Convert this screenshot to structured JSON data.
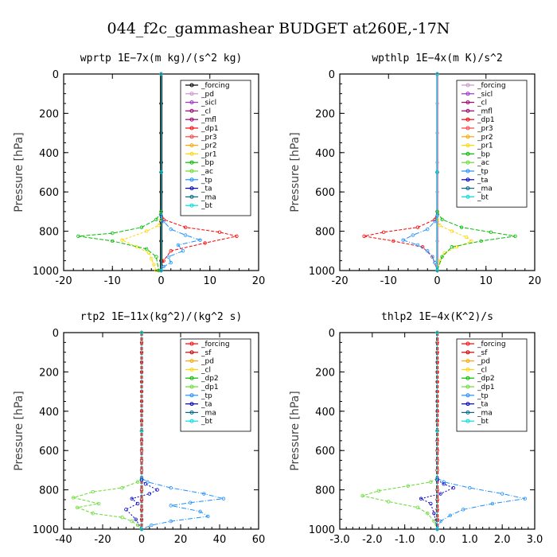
{
  "figure_title": "044_f2c_gammashear  BUDGET at260E,-17N",
  "chart_data": [
    {
      "type": "line",
      "title": "wprtp  1E−7x(m kg)/(s^2 kg)",
      "ylabel": "Pressure [hPa]",
      "xlim": [
        -20,
        20
      ],
      "ylim": [
        1000,
        0
      ],
      "xticks": [
        "-20",
        "-10",
        "0",
        "10",
        "20"
      ],
      "yticks": [
        "0",
        "200",
        "400",
        "600",
        "800",
        "1000"
      ],
      "legend": "top-right",
      "series": [
        {
          "name": "_forcing",
          "color": "#000000",
          "marker": "o",
          "x": [
            0,
            0,
            0,
            0,
            0,
            0,
            0,
            0,
            0
          ],
          "y": [
            0,
            150,
            300,
            450,
            600,
            750,
            850,
            950,
            1000
          ]
        },
        {
          "name": "_pd",
          "color": "#c896c8",
          "marker": "o",
          "x": [
            0,
            0,
            0
          ],
          "y": [
            0,
            500,
            1000
          ]
        },
        {
          "name": "_sicl",
          "color": "#9932cc",
          "marker": "o",
          "x": [
            0,
            0,
            0
          ],
          "y": [
            0,
            500,
            1000
          ]
        },
        {
          "name": "_cl",
          "color": "#a0006e",
          "marker": "+",
          "x": [
            0,
            0,
            0
          ],
          "y": [
            0,
            500,
            1000
          ]
        },
        {
          "name": "_mfl",
          "color": "#a0006e",
          "marker": "+",
          "x": [
            0,
            0,
            0
          ],
          "y": [
            0,
            500,
            1000
          ]
        },
        {
          "name": "_dp1",
          "color": "#ff0000",
          "marker": "o",
          "x": [
            0,
            0.5,
            5,
            12,
            15.5,
            9,
            2,
            0.5,
            0
          ],
          "y": [
            700,
            740,
            780,
            805,
            825,
            860,
            900,
            950,
            1000
          ]
        },
        {
          "name": "_pr3",
          "color": "#ff4040",
          "marker": "+",
          "x": [
            0,
            0,
            0
          ],
          "y": [
            0,
            500,
            1000
          ]
        },
        {
          "name": "_pr2",
          "color": "#ffa500",
          "marker": "+",
          "x": [
            0,
            0,
            0
          ],
          "y": [
            0,
            500,
            1000
          ]
        },
        {
          "name": "_pr1",
          "color": "#ffd700",
          "marker": "+",
          "x": [
            0,
            -0.5,
            -3,
            -8,
            -5,
            -2.5,
            -2,
            -1.5,
            -1
          ],
          "y": [
            740,
            770,
            800,
            845,
            880,
            910,
            940,
            970,
            1000
          ]
        },
        {
          "name": "_bp",
          "color": "#00bb00",
          "marker": "x",
          "x": [
            0,
            -1,
            -4,
            -10,
            -17,
            -10,
            -3,
            -1,
            -0.5
          ],
          "y": [
            700,
            740,
            780,
            810,
            825,
            850,
            890,
            930,
            1000
          ]
        },
        {
          "name": "_ac",
          "color": "#66dd33",
          "marker": "o",
          "x": [
            0,
            0,
            0
          ],
          "y": [
            0,
            500,
            1000
          ]
        },
        {
          "name": "_tp",
          "color": "#1e90ff",
          "marker": "x",
          "x": [
            0,
            0.5,
            2,
            5,
            8,
            3.5,
            4.5,
            1.5,
            2,
            0.5,
            0
          ],
          "y": [
            720,
            750,
            790,
            820,
            845,
            870,
            900,
            930,
            960,
            980,
            1000
          ]
        },
        {
          "name": "_ta",
          "color": "#0000cd",
          "marker": "+",
          "x": [
            0,
            0,
            0
          ],
          "y": [
            0,
            500,
            1000
          ]
        },
        {
          "name": "_ma",
          "color": "#00688b",
          "marker": "-",
          "x": [
            0,
            0,
            0
          ],
          "y": [
            0,
            500,
            1000
          ]
        },
        {
          "name": "_bt",
          "color": "#00dddd",
          "marker": "d",
          "x": [
            0,
            0,
            0
          ],
          "y": [
            0,
            500,
            1000
          ]
        }
      ]
    },
    {
      "type": "line",
      "title": "wpthlp  1E−4x(m K)/s^2",
      "ylabel": "Pressure [hPa]",
      "xlim": [
        -20,
        20
      ],
      "ylim": [
        1000,
        0
      ],
      "xticks": [
        "-20",
        "-10",
        "0",
        "10",
        "20"
      ],
      "yticks": [
        "0",
        "200",
        "400",
        "600",
        "800",
        "1000"
      ],
      "legend": "top-right",
      "series": [
        {
          "name": "_forcing",
          "color": "#c896c8",
          "marker": "o",
          "x": [
            0,
            0,
            0,
            0,
            0,
            0,
            0,
            0,
            0
          ],
          "y": [
            0,
            150,
            300,
            450,
            600,
            750,
            850,
            950,
            1000
          ]
        },
        {
          "name": "_sicl",
          "color": "#9932cc",
          "marker": "o",
          "x": [
            0,
            0,
            0
          ],
          "y": [
            0,
            500,
            1000
          ]
        },
        {
          "name": "_cl",
          "color": "#a0006e",
          "marker": "+",
          "x": [
            0,
            0,
            0
          ],
          "y": [
            0,
            500,
            1000
          ]
        },
        {
          "name": "_mfl",
          "color": "#a0006e",
          "marker": "+",
          "x": [
            0,
            0,
            0
          ],
          "y": [
            0,
            500,
            1000
          ]
        },
        {
          "name": "_dp1",
          "color": "#ff0000",
          "marker": "o",
          "x": [
            0,
            -0.5,
            -4,
            -11,
            -15,
            -9,
            -3,
            -1,
            0
          ],
          "y": [
            700,
            740,
            780,
            805,
            825,
            850,
            880,
            930,
            1000
          ]
        },
        {
          "name": "_pr3",
          "color": "#ff4040",
          "marker": "+",
          "x": [
            0,
            0,
            0
          ],
          "y": [
            0,
            500,
            1000
          ]
        },
        {
          "name": "_pr2",
          "color": "#ffa500",
          "marker": "+",
          "x": [
            0,
            0,
            0
          ],
          "y": [
            0,
            500,
            1000
          ]
        },
        {
          "name": "_pr1",
          "color": "#ffd700",
          "marker": "+",
          "x": [
            0,
            0.5,
            3,
            6,
            7,
            4,
            1.5,
            0.5,
            0
          ],
          "y": [
            740,
            770,
            800,
            830,
            850,
            880,
            910,
            950,
            1000
          ]
        },
        {
          "name": "_bp",
          "color": "#00bb00",
          "marker": "x",
          "x": [
            0,
            1,
            5,
            11,
            16,
            9,
            3,
            1,
            0
          ],
          "y": [
            700,
            740,
            780,
            805,
            825,
            850,
            880,
            930,
            1000
          ]
        },
        {
          "name": "_ac",
          "color": "#66dd33",
          "marker": "o",
          "x": [
            0,
            0,
            0
          ],
          "y": [
            0,
            500,
            1000
          ]
        },
        {
          "name": "_tp",
          "color": "#1e90ff",
          "marker": "x",
          "x": [
            0,
            -0.5,
            -2,
            -5,
            -7,
            -4,
            -2,
            -1,
            -0.5,
            0
          ],
          "y": [
            720,
            750,
            790,
            820,
            845,
            870,
            900,
            930,
            960,
            1000
          ]
        },
        {
          "name": "_ta",
          "color": "#0000cd",
          "marker": "+",
          "x": [
            0,
            0,
            0
          ],
          "y": [
            0,
            500,
            1000
          ]
        },
        {
          "name": "_ma",
          "color": "#00688b",
          "marker": "-",
          "x": [
            0,
            0,
            0
          ],
          "y": [
            0,
            500,
            1000
          ]
        },
        {
          "name": "_bt",
          "color": "#00dddd",
          "marker": "d",
          "x": [
            0,
            0,
            0
          ],
          "y": [
            0,
            500,
            1000
          ]
        }
      ]
    },
    {
      "type": "line",
      "title": "rtp2  1E−11x(kg^2)/(kg^2 s)",
      "ylabel": "Pressure [hPa]",
      "xlim": [
        -40,
        60
      ],
      "ylim": [
        1000,
        0
      ],
      "xticks": [
        "-40",
        "-20",
        "0",
        "20",
        "40",
        "60"
      ],
      "yticks": [
        "0",
        "200",
        "400",
        "600",
        "800",
        "1000"
      ],
      "legend": "top-right",
      "series": [
        {
          "name": "_forcing",
          "color": "#ff0000",
          "marker": "o",
          "x": [
            0,
            0,
            0,
            0,
            0,
            0,
            0,
            0,
            0,
            0,
            0,
            0,
            0,
            0,
            0,
            0,
            0,
            0,
            0,
            0,
            0
          ],
          "y": [
            0,
            50,
            100,
            150,
            200,
            250,
            300,
            350,
            400,
            450,
            500,
            550,
            600,
            650,
            700,
            750,
            800,
            850,
            900,
            950,
            1000
          ]
        },
        {
          "name": "_sf",
          "color": "#cc0000",
          "marker": "+",
          "x": [
            0,
            0,
            0
          ],
          "y": [
            0,
            500,
            1000
          ]
        },
        {
          "name": "_pd",
          "color": "#ffa500",
          "marker": "+",
          "x": [
            0,
            0,
            0
          ],
          "y": [
            0,
            500,
            1000
          ]
        },
        {
          "name": "_cl",
          "color": "#ffd700",
          "marker": "o",
          "x": [
            0,
            0,
            0
          ],
          "y": [
            0,
            500,
            1000
          ]
        },
        {
          "name": "_dp2",
          "color": "#00bb00",
          "marker": "x",
          "x": [
            0,
            0,
            0
          ],
          "y": [
            0,
            500,
            1000
          ]
        },
        {
          "name": "_dp1",
          "color": "#66dd33",
          "marker": "o",
          "x": [
            0,
            -2,
            -10,
            -25,
            -35,
            -22,
            -33,
            -25,
            -10,
            -5,
            -2,
            0
          ],
          "y": [
            740,
            760,
            790,
            810,
            840,
            870,
            890,
            920,
            940,
            960,
            980,
            1000
          ]
        },
        {
          "name": "_tp",
          "color": "#1e90ff",
          "marker": "x",
          "x": [
            0,
            3,
            15,
            32,
            42,
            25,
            15,
            30,
            34,
            15,
            5,
            0
          ],
          "y": [
            740,
            760,
            790,
            820,
            845,
            865,
            880,
            910,
            935,
            960,
            980,
            1000
          ]
        },
        {
          "name": "_ta",
          "color": "#0000cd",
          "marker": "+",
          "x": [
            0,
            2,
            8,
            4,
            -5,
            -2,
            -8,
            -3,
            0
          ],
          "y": [
            750,
            770,
            800,
            820,
            845,
            870,
            900,
            950,
            1000
          ]
        },
        {
          "name": "_ma",
          "color": "#00688b",
          "marker": "-",
          "x": [
            0,
            0,
            0
          ],
          "y": [
            0,
            500,
            1000
          ]
        },
        {
          "name": "_bt",
          "color": "#00dddd",
          "marker": "d",
          "x": [
            0,
            0,
            0
          ],
          "y": [
            0,
            500,
            1000
          ]
        }
      ]
    },
    {
      "type": "line",
      "title": "thlp2  1E−4x(K^2)/s",
      "ylabel": "Pressure [hPa]",
      "xlim": [
        -3.0,
        3.0
      ],
      "ylim": [
        1000,
        0
      ],
      "xticks": [
        "-3.0",
        "-2.0",
        "-1.0",
        "0.0",
        "1.0",
        "2.0",
        "3.0"
      ],
      "yticks": [
        "0",
        "200",
        "400",
        "600",
        "800",
        "1000"
      ],
      "legend": "top-right",
      "series": [
        {
          "name": "_forcing",
          "color": "#ff0000",
          "marker": "o",
          "x": [
            0,
            0,
            0,
            0,
            0,
            0,
            0,
            0,
            0,
            0,
            0,
            0,
            0,
            0,
            0,
            0,
            0,
            0,
            0,
            0,
            0
          ],
          "y": [
            0,
            50,
            100,
            150,
            200,
            250,
            300,
            350,
            400,
            450,
            500,
            550,
            600,
            650,
            700,
            750,
            800,
            850,
            900,
            950,
            1000
          ]
        },
        {
          "name": "_sf",
          "color": "#cc0000",
          "marker": "+",
          "x": [
            0,
            0,
            0
          ],
          "y": [
            0,
            500,
            1000
          ]
        },
        {
          "name": "_pd",
          "color": "#ffa500",
          "marker": "+",
          "x": [
            0,
            0,
            0
          ],
          "y": [
            0,
            500,
            1000
          ]
        },
        {
          "name": "_cl",
          "color": "#ffd700",
          "marker": "o",
          "x": [
            0,
            0,
            0
          ],
          "y": [
            0,
            500,
            1000
          ]
        },
        {
          "name": "_dp2",
          "color": "#00bb00",
          "marker": "x",
          "x": [
            0,
            0,
            0
          ],
          "y": [
            0,
            500,
            1000
          ]
        },
        {
          "name": "_dp1",
          "color": "#66dd33",
          "marker": "o",
          "x": [
            0,
            -0.2,
            -0.9,
            -1.8,
            -2.3,
            -1.5,
            -0.6,
            -0.3,
            -0.1,
            0
          ],
          "y": [
            740,
            760,
            780,
            805,
            830,
            860,
            890,
            920,
            960,
            1000
          ]
        },
        {
          "name": "_tp",
          "color": "#1e90ff",
          "marker": "x",
          "x": [
            0,
            0.2,
            1.0,
            2.0,
            2.7,
            1.7,
            0.8,
            0.4,
            0.1,
            0
          ],
          "y": [
            740,
            760,
            790,
            820,
            845,
            870,
            900,
            930,
            960,
            1000
          ]
        },
        {
          "name": "_ta",
          "color": "#0000cd",
          "marker": "+",
          "x": [
            0,
            0.2,
            0.5,
            0.1,
            -0.5,
            -0.2,
            -0.1,
            0
          ],
          "y": [
            750,
            770,
            790,
            820,
            845,
            870,
            920,
            1000
          ]
        },
        {
          "name": "_ma",
          "color": "#00688b",
          "marker": "-",
          "x": [
            0,
            0,
            0
          ],
          "y": [
            0,
            500,
            1000
          ]
        },
        {
          "name": "_bt",
          "color": "#00dddd",
          "marker": "d",
          "x": [
            0,
            0,
            0
          ],
          "y": [
            0,
            500,
            1000
          ]
        }
      ]
    }
  ]
}
